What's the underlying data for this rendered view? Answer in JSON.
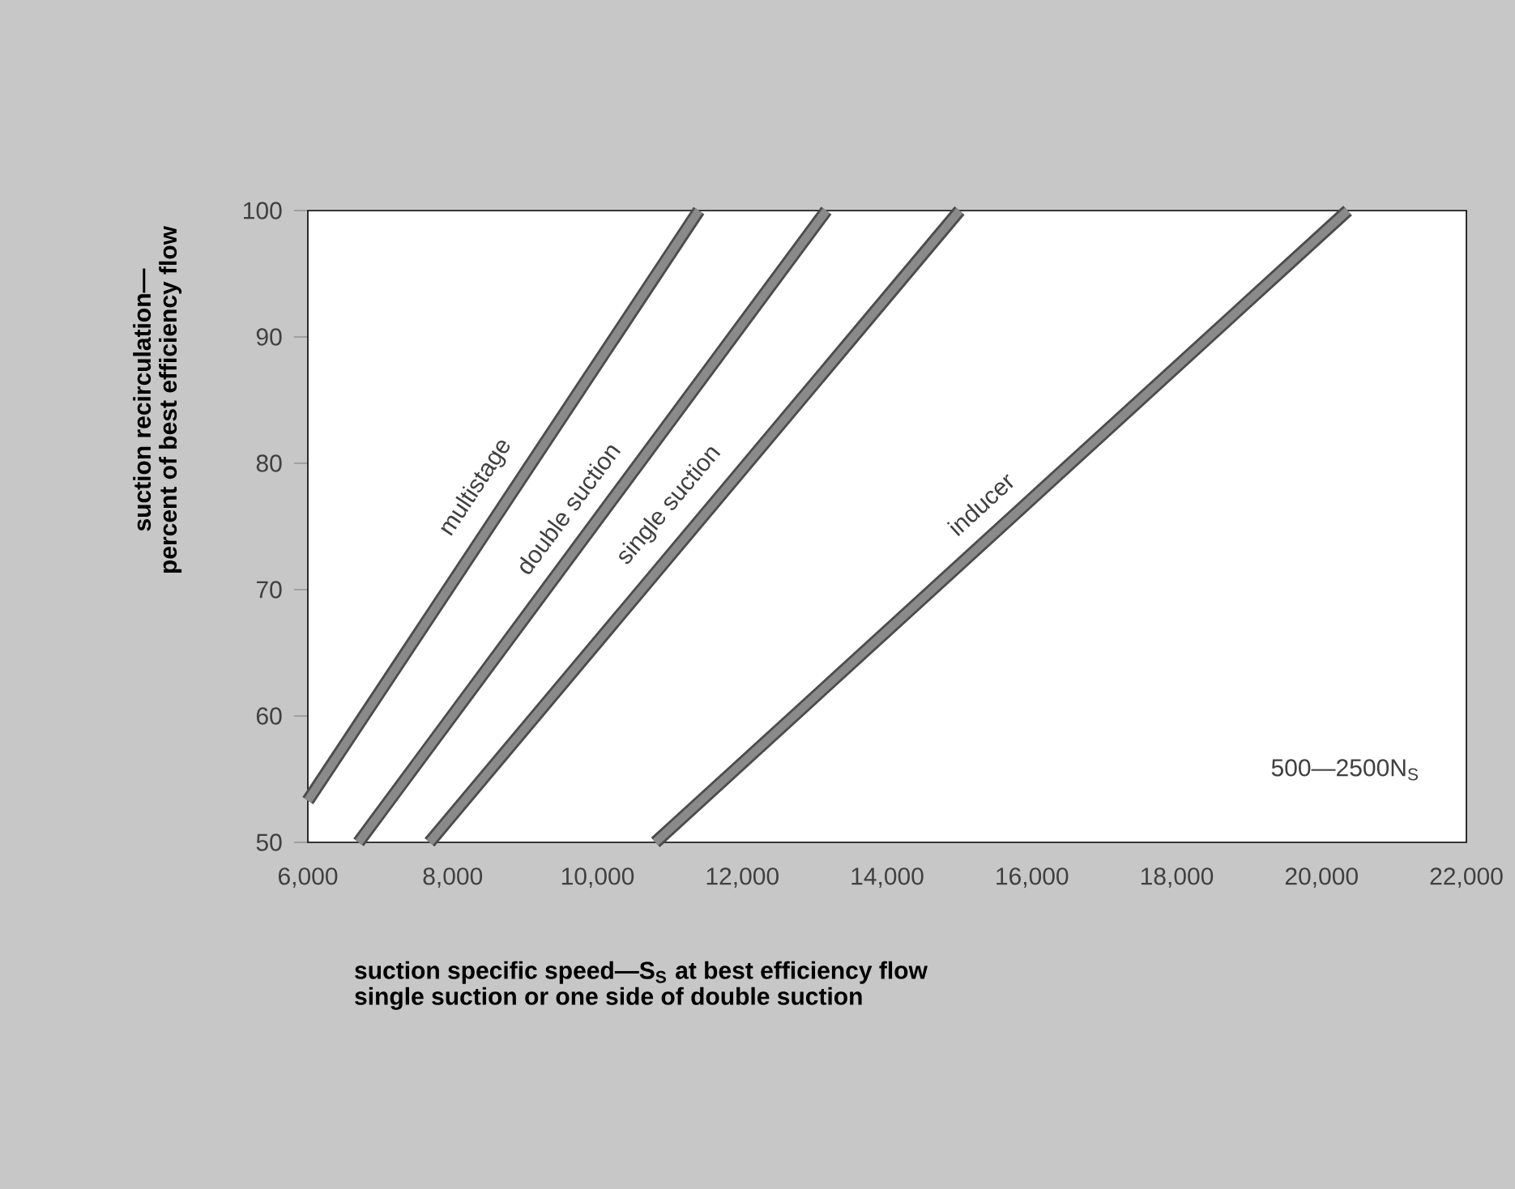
{
  "chart_data": {
    "type": "line",
    "xlabel": "suction specific speed—S$_{S}$ at best efficiency flow\nsingle suction or one side of double suction",
    "ylabel": "suction recirculation—\npercent of best efficiency flow",
    "annotations": [
      "500—2500N$_{S}$"
    ],
    "xlim": [
      6000,
      22000
    ],
    "ylim": [
      50,
      100
    ],
    "xticks": [
      {
        "value": 6000,
        "label": "6,000"
      },
      {
        "value": 8000,
        "label": "8,000"
      },
      {
        "value": 10000,
        "label": "10,000"
      },
      {
        "value": 12000,
        "label": "12,000"
      },
      {
        "value": 14000,
        "label": "14,000"
      },
      {
        "value": 16000,
        "label": "16,000"
      },
      {
        "value": 18000,
        "label": "18,000"
      },
      {
        "value": 20000,
        "label": "20,000"
      },
      {
        "value": 22000,
        "label": "22,000"
      }
    ],
    "yticks": [
      50,
      60,
      70,
      80,
      90,
      100
    ],
    "grid": false,
    "series": [
      {
        "name": "multistage",
        "color": "#8a8a8a",
        "x": [
          6000,
          11400
        ],
        "values": [
          53.3,
          100
        ]
      },
      {
        "name": "double suction",
        "color": "#8a8a8a",
        "x": [
          6700,
          13160
        ],
        "values": [
          50,
          100
        ]
      },
      {
        "name": "single suction",
        "color": "#8a8a8a",
        "x": [
          7680,
          15000
        ],
        "values": [
          50,
          100
        ]
      },
      {
        "name": "inducer",
        "color": "#8a8a8a",
        "x": [
          10800,
          20360
        ],
        "values": [
          50,
          100
        ]
      }
    ]
  }
}
